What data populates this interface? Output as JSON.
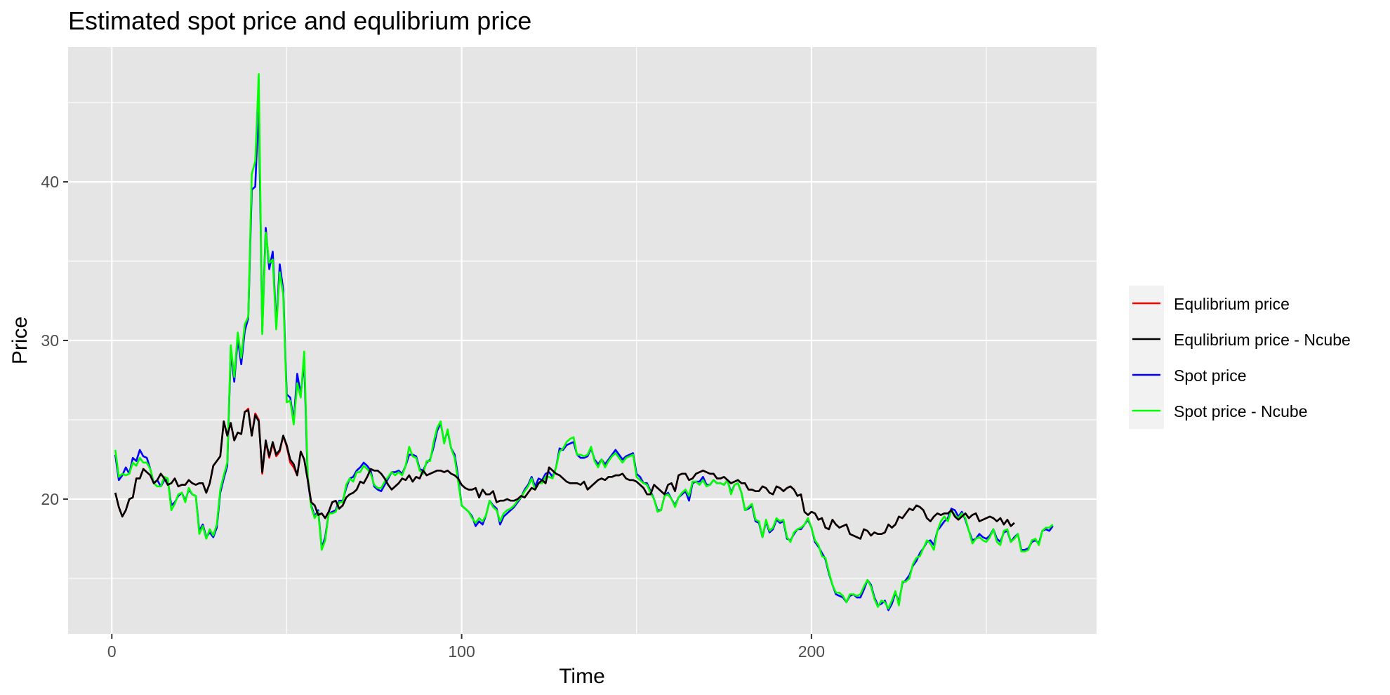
{
  "chart_data": {
    "type": "line",
    "title": "Estimated spot price and equlibrium price",
    "xlabel": "Time",
    "ylabel": "Price",
    "xlim": [
      -12.5,
      281.5
    ],
    "ylim": [
      11.5,
      48.5
    ],
    "x_ticks": [
      0,
      100,
      200
    ],
    "y_ticks": [
      20,
      30,
      40
    ],
    "grid": true,
    "legend_position": "right",
    "x_start": 1,
    "x_step": 1,
    "series": [
      {
        "name": "Equlibrium price",
        "color": "#ff0000",
        "values": [
          20.4,
          19.5,
          18.9,
          19.3,
          20.0,
          20.1,
          21.3,
          21.3,
          21.9,
          21.7,
          21.5,
          21.0,
          21.2,
          21.6,
          21.3,
          20.9,
          21.0,
          21.3,
          20.8,
          20.9,
          20.9,
          21.2,
          21.0,
          20.9,
          21.0,
          21.0,
          20.4,
          21.0,
          22.1,
          22.4,
          22.7,
          24.9,
          24.0,
          24.8,
          23.7,
          24.2,
          24.1,
          25.5,
          25.7,
          24.0,
          25.4,
          25.0,
          21.6,
          23.6,
          22.6,
          23.5,
          22.7,
          23.0,
          24.0,
          23.3,
          22.3,
          22.0,
          21.5,
          23.0,
          22.5,
          21.2,
          19.8,
          19.6,
          19.0,
          19.1,
          18.8,
          19.2,
          19.8,
          19.9,
          19.4,
          19.6,
          20.1,
          20.3,
          20.4,
          20.6,
          21.1,
          21.0,
          21.4,
          21.9,
          21.8,
          21.8,
          21.6,
          21.3,
          20.9,
          20.6,
          20.8,
          21.0,
          21.3,
          21.2,
          21.5,
          21.1,
          21.4,
          21.3,
          21.8,
          21.5,
          21.6,
          21.7,
          21.8,
          21.8,
          21.7,
          21.8,
          21.6,
          21.5,
          21.3,
          20.9,
          20.7,
          20.6,
          20.6,
          20.7,
          20.1,
          20.6,
          20.3,
          20.3,
          20.5,
          19.8,
          19.9,
          19.9,
          20.0,
          19.9,
          19.9,
          20.0,
          20.2,
          20.1,
          20.4,
          20.7,
          20.6,
          21.0,
          21.2,
          21.0,
          22.0,
          21.8,
          21.6,
          21.5,
          21.3,
          21.1,
          21.0,
          21.0,
          21.0,
          20.9,
          21.1,
          20.6,
          20.8,
          21.0,
          21.2,
          21.3,
          21.2,
          21.4,
          21.4,
          21.5,
          21.5,
          21.6,
          21.3,
          21.2,
          21.2,
          21.1,
          20.9,
          20.7,
          20.3,
          20.3,
          20.9,
          20.7,
          20.5,
          20.3,
          20.9,
          21.0,
          20.5,
          21.5,
          21.6,
          21.6,
          21.2,
          21.3,
          21.6,
          21.7,
          21.8,
          21.7,
          21.6,
          21.6,
          21.3,
          21.3,
          21.4,
          21.2,
          21.0,
          21.1,
          21.2,
          21.0,
          21.0,
          20.6,
          20.6,
          20.5,
          20.5,
          20.8,
          20.7,
          20.4,
          20.3,
          20.8,
          20.7,
          20.5,
          20.7,
          20.8,
          20.6,
          20.2,
          20.3,
          19.2,
          19.0,
          19.2,
          19.1,
          18.7,
          18.8,
          18.2,
          18.1,
          18.7,
          18.4,
          18.2,
          18.3,
          18.4,
          17.8,
          17.7,
          17.6,
          17.5,
          18.1,
          18.0,
          17.7,
          17.9,
          17.8,
          17.8,
          17.9,
          18.4,
          18.2,
          18.4,
          18.9,
          18.8,
          19.1,
          19.4,
          19.3,
          19.6,
          19.5,
          19.3,
          18.8,
          18.6,
          18.9,
          19.1,
          19.0,
          19.1,
          19.1,
          19.3,
          18.9,
          18.7,
          18.9,
          19.1,
          18.8,
          19.0,
          19.1,
          18.6,
          18.7,
          18.8,
          18.9,
          18.8,
          18.6,
          18.8,
          18.4,
          18.7,
          18.3,
          18.5
        ]
      },
      {
        "name": "Equlibrium price - Ncube",
        "color": "#000000",
        "values": [
          20.4,
          19.5,
          18.9,
          19.3,
          20.0,
          20.1,
          21.3,
          21.3,
          21.9,
          21.7,
          21.5,
          21.0,
          21.2,
          21.6,
          21.3,
          20.9,
          21.0,
          21.3,
          20.8,
          20.9,
          20.9,
          21.2,
          21.0,
          20.9,
          21.0,
          21.0,
          20.4,
          21.0,
          22.1,
          22.4,
          22.7,
          24.9,
          24.0,
          24.8,
          23.7,
          24.2,
          24.1,
          25.5,
          25.6,
          24.0,
          25.3,
          24.9,
          21.7,
          23.7,
          22.7,
          23.6,
          22.8,
          23.1,
          24.0,
          23.4,
          22.5,
          22.2,
          21.5,
          23.0,
          22.5,
          21.2,
          19.8,
          19.6,
          19.0,
          19.1,
          18.8,
          19.2,
          19.8,
          19.9,
          19.4,
          19.6,
          20.1,
          20.3,
          20.4,
          20.6,
          21.1,
          21.0,
          21.4,
          21.9,
          21.8,
          21.8,
          21.6,
          21.3,
          20.9,
          20.6,
          20.8,
          21.0,
          21.3,
          21.2,
          21.5,
          21.1,
          21.4,
          21.3,
          21.8,
          21.5,
          21.6,
          21.7,
          21.8,
          21.8,
          21.7,
          21.8,
          21.6,
          21.5,
          21.3,
          20.9,
          20.7,
          20.6,
          20.6,
          20.7,
          20.1,
          20.6,
          20.3,
          20.3,
          20.5,
          19.8,
          19.9,
          19.9,
          20.0,
          19.9,
          19.9,
          20.0,
          20.2,
          20.1,
          20.4,
          20.7,
          20.6,
          21.0,
          21.2,
          21.0,
          22.0,
          21.8,
          21.6,
          21.5,
          21.3,
          21.1,
          21.0,
          21.0,
          21.0,
          20.9,
          21.1,
          20.6,
          20.8,
          21.0,
          21.2,
          21.3,
          21.2,
          21.4,
          21.4,
          21.5,
          21.5,
          21.6,
          21.3,
          21.2,
          21.2,
          21.1,
          20.9,
          20.7,
          20.3,
          20.3,
          20.9,
          20.7,
          20.5,
          20.3,
          20.9,
          21.0,
          20.5,
          21.5,
          21.6,
          21.6,
          21.2,
          21.3,
          21.6,
          21.7,
          21.8,
          21.7,
          21.6,
          21.6,
          21.3,
          21.3,
          21.4,
          21.2,
          21.0,
          21.1,
          21.2,
          21.0,
          21.0,
          20.6,
          20.6,
          20.5,
          20.5,
          20.8,
          20.7,
          20.4,
          20.3,
          20.8,
          20.7,
          20.5,
          20.7,
          20.8,
          20.6,
          20.2,
          20.3,
          19.2,
          19.0,
          19.2,
          19.1,
          18.7,
          18.8,
          18.2,
          18.1,
          18.7,
          18.4,
          18.2,
          18.3,
          18.4,
          17.8,
          17.7,
          17.6,
          17.5,
          18.1,
          18.0,
          17.7,
          17.9,
          17.8,
          17.8,
          17.9,
          18.4,
          18.2,
          18.4,
          18.9,
          18.8,
          19.1,
          19.4,
          19.3,
          19.6,
          19.5,
          19.3,
          18.8,
          18.6,
          18.9,
          19.1,
          19.0,
          19.1,
          19.1,
          19.3,
          18.9,
          18.7,
          18.9,
          19.1,
          18.8,
          19.0,
          19.1,
          18.6,
          18.7,
          18.8,
          18.9,
          18.8,
          18.6,
          18.8,
          18.4,
          18.7,
          18.3,
          18.5
        ]
      },
      {
        "name": "Spot price",
        "color": "#0000ff",
        "values": [
          22.8,
          21.2,
          21.5,
          22.0,
          21.6,
          22.6,
          22.4,
          23.1,
          22.7,
          22.6,
          21.9,
          21.0,
          21.2,
          20.8,
          21.2,
          21.2,
          19.6,
          19.8,
          20.2,
          20.4,
          19.9,
          20.6,
          20.3,
          20.2,
          18.0,
          18.4,
          17.6,
          17.9,
          17.6,
          18.2,
          20.4,
          21.3,
          22.1,
          29.3,
          27.4,
          30.1,
          28.5,
          30.6,
          31.4,
          39.5,
          39.7,
          45.0,
          30.6,
          37.1,
          34.5,
          35.6,
          30.9,
          34.8,
          33.2,
          26.6,
          26.4,
          24.9,
          27.9,
          26.6,
          28.7,
          21.2,
          19.6,
          18.9,
          19.3,
          16.9,
          17.6,
          19.1,
          19.2,
          19.3,
          19.9,
          19.9,
          20.7,
          21.3,
          21.4,
          21.8,
          22.0,
          22.3,
          22.1,
          21.8,
          20.8,
          20.6,
          20.5,
          20.9,
          21.3,
          21.7,
          21.7,
          21.8,
          21.6,
          22.1,
          22.8,
          22.8,
          22.7,
          21.9,
          21.8,
          22.3,
          22.5,
          23.3,
          24.3,
          24.8,
          23.6,
          24.3,
          23.2,
          22.8,
          21.4,
          19.6,
          19.4,
          19.2,
          18.9,
          18.3,
          18.6,
          18.4,
          19.0,
          19.9,
          19.6,
          19.4,
          18.4,
          18.9,
          19.1,
          19.3,
          19.5,
          19.8,
          20.1,
          20.6,
          20.9,
          21.4,
          20.8,
          21.3,
          21.2,
          21.6,
          21.7,
          21.4,
          22.0,
          23.2,
          23.1,
          23.4,
          23.5,
          23.6,
          22.8,
          22.6,
          22.6,
          22.7,
          23.2,
          22.5,
          22.2,
          22.5,
          22.2,
          22.5,
          22.8,
          23.1,
          22.8,
          22.5,
          22.7,
          22.8,
          22.9,
          21.6,
          21.4,
          21.0,
          21.0,
          20.5,
          20.0,
          19.3,
          19.3,
          20.2,
          20.4,
          20.0,
          19.6,
          20.1,
          20.3,
          20.5,
          19.9,
          21.0,
          21.1,
          21.1,
          21.4,
          20.9,
          20.9,
          21.2,
          21.0,
          21.0,
          20.9,
          21.2,
          20.4,
          20.9,
          21.0,
          20.4,
          19.3,
          19.4,
          19.6,
          18.6,
          18.5,
          17.6,
          18.6,
          17.9,
          18.1,
          18.7,
          18.5,
          18.6,
          17.5,
          17.4,
          17.8,
          18.1,
          18.1,
          18.4,
          18.7,
          18.2,
          17.3,
          17.0,
          16.6,
          16.2,
          15.3,
          14.6,
          14.0,
          13.9,
          13.8,
          13.5,
          13.9,
          14.0,
          13.8,
          13.8,
          14.3,
          14.9,
          14.6,
          13.8,
          13.3,
          13.4,
          13.6,
          13.0,
          13.4,
          14.1,
          13.5,
          14.7,
          14.9,
          15.2,
          15.8,
          16.1,
          16.6,
          16.9,
          17.3,
          17.4,
          17.1,
          18.0,
          18.3,
          18.6,
          18.8,
          19.4,
          19.3,
          18.9,
          19.2,
          18.7,
          18.0,
          17.4,
          17.5,
          17.8,
          17.6,
          17.5,
          17.7,
          18.1,
          17.5,
          17.3,
          17.9,
          18.0,
          17.3,
          17.6,
          17.8,
          16.8,
          16.8,
          16.9,
          17.3,
          17.4,
          17.2,
          18.0,
          18.1,
          18.0,
          18.3
        ]
      },
      {
        "name": "Spot price - Ncube",
        "color": "#00ff00",
        "values": [
          23.1,
          21.4,
          21.6,
          21.5,
          21.6,
          22.3,
          22.1,
          22.6,
          22.3,
          22.3,
          21.9,
          21.0,
          20.8,
          20.8,
          21.4,
          21.3,
          19.3,
          19.7,
          20.3,
          20.4,
          19.8,
          20.7,
          20.3,
          20.2,
          17.8,
          18.3,
          17.5,
          18.1,
          17.7,
          18.4,
          20.6,
          21.5,
          22.3,
          29.7,
          27.7,
          30.5,
          28.9,
          31.0,
          31.5,
          40.5,
          41.3,
          46.8,
          30.4,
          36.8,
          34.9,
          35.1,
          30.7,
          34.3,
          32.9,
          26.1,
          26.2,
          24.7,
          27.3,
          26.4,
          29.3,
          21.5,
          19.5,
          18.8,
          19.2,
          16.8,
          17.4,
          19.1,
          19.1,
          19.2,
          19.8,
          19.8,
          20.9,
          21.3,
          21.1,
          21.7,
          21.7,
          22.1,
          21.9,
          21.6,
          20.9,
          20.7,
          20.7,
          21.1,
          21.4,
          21.7,
          21.5,
          21.7,
          21.5,
          22.1,
          23.3,
          22.7,
          22.6,
          21.8,
          21.6,
          22.4,
          22.4,
          23.6,
          24.5,
          24.9,
          23.5,
          24.4,
          23.2,
          22.6,
          21.1,
          19.6,
          19.4,
          19.2,
          18.8,
          18.5,
          18.8,
          18.6,
          19.0,
          19.9,
          19.5,
          19.3,
          18.6,
          19.1,
          19.3,
          19.4,
          19.6,
          19.9,
          20.1,
          20.5,
          20.8,
          21.3,
          20.6,
          21.0,
          21.0,
          21.4,
          21.4,
          21.3,
          22.0,
          23.0,
          23.2,
          23.6,
          23.8,
          23.9,
          22.8,
          22.8,
          22.7,
          22.8,
          23.3,
          22.4,
          22.0,
          22.5,
          22.0,
          22.4,
          22.7,
          22.9,
          22.6,
          22.3,
          22.6,
          22.7,
          22.8,
          21.4,
          21.2,
          21.0,
          20.9,
          20.4,
          20.0,
          19.2,
          19.3,
          20.2,
          20.3,
          20.0,
          19.5,
          20.1,
          20.4,
          20.6,
          20.2,
          21.1,
          21.1,
          20.9,
          21.2,
          20.8,
          20.9,
          21.2,
          21.0,
          21.0,
          20.9,
          21.2,
          20.3,
          20.9,
          21.0,
          20.4,
          19.3,
          19.5,
          19.7,
          18.7,
          18.6,
          17.6,
          18.7,
          18.0,
          18.2,
          18.8,
          18.6,
          18.7,
          17.6,
          17.3,
          17.9,
          18.1,
          18.2,
          18.4,
          18.8,
          18.2,
          17.4,
          17.1,
          16.4,
          16.3,
          15.4,
          14.6,
          14.1,
          14.1,
          13.9,
          13.5,
          14.0,
          14.0,
          13.9,
          14.0,
          14.5,
          14.9,
          14.5,
          13.7,
          13.2,
          13.6,
          13.5,
          13.1,
          13.6,
          14.2,
          13.3,
          14.8,
          14.8,
          15.0,
          15.9,
          16.3,
          16.4,
          16.9,
          17.4,
          17.2,
          16.8,
          18.0,
          18.6,
          18.9,
          18.6,
          19.3,
          19.0,
          18.8,
          19.1,
          18.8,
          18.0,
          17.2,
          17.5,
          17.6,
          17.4,
          17.3,
          17.6,
          18.1,
          17.3,
          17.1,
          18.0,
          18.1,
          17.3,
          17.5,
          17.8,
          16.7,
          16.7,
          16.8,
          17.4,
          17.5,
          17.1,
          18.0,
          18.2,
          18.2,
          18.4
        ]
      }
    ]
  }
}
